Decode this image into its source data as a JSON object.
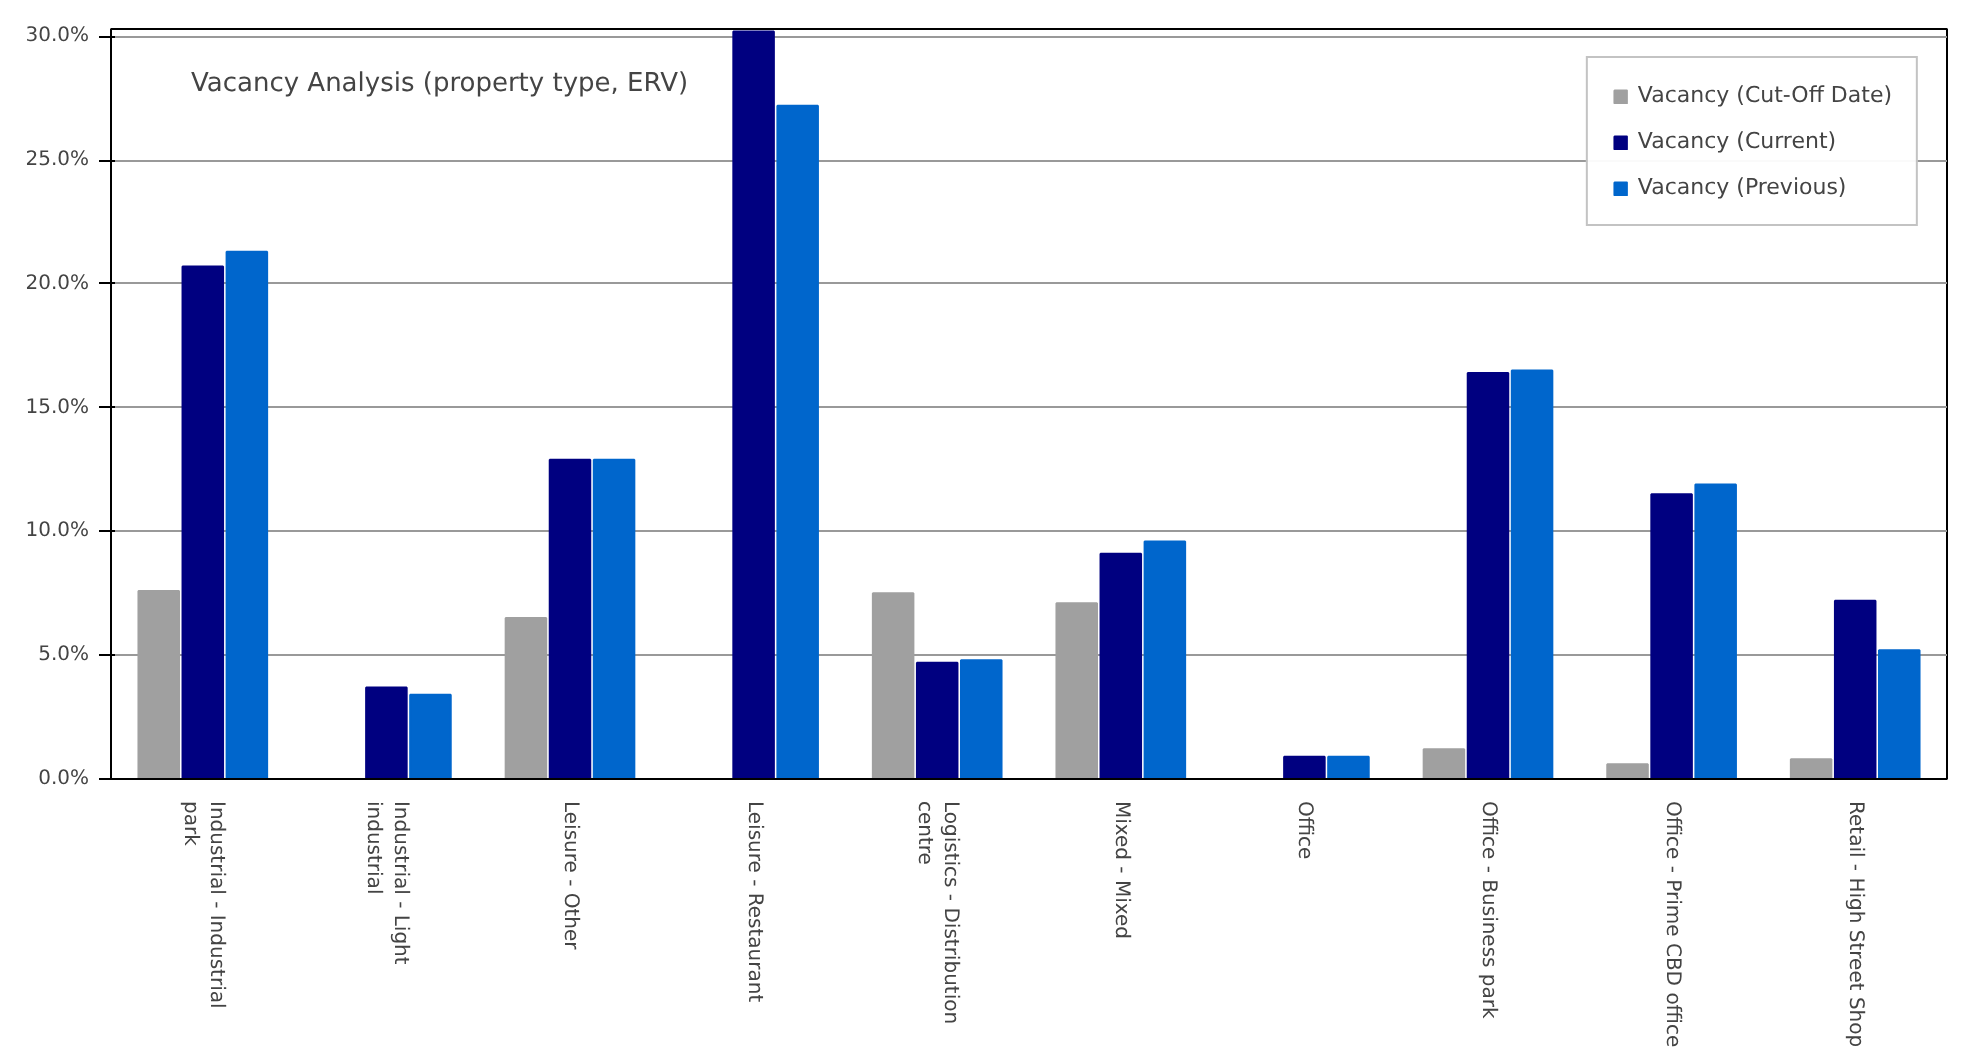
{
  "chart_data": {
    "type": "bar",
    "title": "Vacancy Analysis (property type, ERV)",
    "categories": [
      "Industrial - Industrial park",
      "Industrial - Light industrial",
      "Leisure - Other",
      "Leisure - Restaurant",
      "Logistics - Distribution centre",
      "Mixed - Mixed",
      "Office",
      "Office - Business park",
      "Office - Prime CBD office",
      "Retail - High Street Shop"
    ],
    "series": [
      {
        "name": "Vacancy (Cut-Off Date)",
        "color": "#a0a0a0",
        "values": [
          7.6,
          0,
          6.5,
          0,
          7.5,
          7.1,
          0,
          1.2,
          0.6,
          0.8
        ]
      },
      {
        "name": "Vacancy (Current)",
        "color": "#000080",
        "values": [
          20.7,
          3.7,
          12.9,
          30.2,
          4.7,
          9.1,
          0.9,
          16.4,
          11.5,
          7.2
        ]
      },
      {
        "name": "Vacancy (Previous)",
        "color": "#0066cc",
        "values": [
          21.3,
          3.4,
          12.9,
          27.2,
          4.8,
          9.6,
          0.9,
          16.5,
          11.9,
          5.2
        ]
      }
    ],
    "ylim": [
      0,
      30.3
    ],
    "yticks": [
      {
        "value": 0,
        "label": "0.0%"
      },
      {
        "value": 5,
        "label": "5.0%"
      },
      {
        "value": 10,
        "label": "10.0%"
      },
      {
        "value": 15,
        "label": "15.0%"
      },
      {
        "value": 20,
        "label": "20.0%"
      },
      {
        "value": 25,
        "label": "25.0%"
      },
      {
        "value": 30,
        "label": "30.0%"
      }
    ],
    "grid": "y",
    "legend": "top right"
  }
}
